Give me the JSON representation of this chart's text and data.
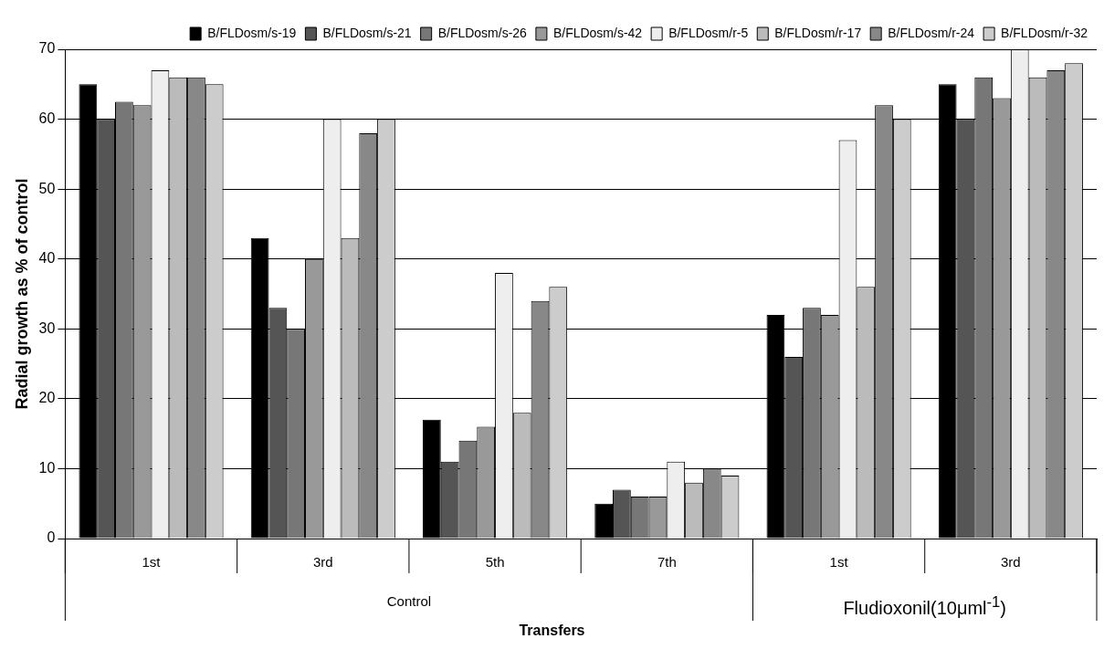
{
  "chart_data": {
    "type": "bar",
    "xlabel": "Transfers",
    "ylabel": "Radial growth as % of control",
    "categories": [
      "1st",
      "3rd",
      "5th",
      "7th",
      "1st",
      "3rd"
    ],
    "annotations": [
      "Control",
      "Fludioxonil(10μml$^{-1}$)"
    ],
    "ylim": [
      0,
      70
    ],
    "yticks": [
      0,
      10,
      20,
      30,
      40,
      50,
      60,
      70
    ],
    "grid": "y",
    "legend": "top right",
    "series": [
      {
        "name": "B/FLDosm/s-19",
        "color": "#000000",
        "values": [
          65,
          43,
          17,
          5,
          32,
          65
        ]
      },
      {
        "name": "B/FLDosm/s-21",
        "color": "#555555",
        "values": [
          60,
          33,
          11,
          7,
          26,
          60
        ]
      },
      {
        "name": "B/FLDosm/s-26",
        "color": "#777777",
        "values": [
          62.5,
          30,
          14,
          6,
          33,
          66
        ]
      },
      {
        "name": "B/FLDosm/s-42",
        "color": "#999999",
        "values": [
          62,
          40,
          16,
          6,
          32,
          63
        ]
      },
      {
        "name": "B/FLDosm/r-5",
        "color": "#eeeeee",
        "values": [
          67,
          60,
          38,
          11,
          57,
          70
        ]
      },
      {
        "name": "B/FLDosm/r-17",
        "color": "#bbbbbb",
        "values": [
          66,
          43,
          18,
          8,
          36,
          66
        ]
      },
      {
        "name": "B/FLDosm/r-24",
        "color": "#888888",
        "values": [
          66,
          58,
          34,
          10,
          62,
          67
        ]
      },
      {
        "name": "B/FLDosm/r-32",
        "color": "#cccccc",
        "values": [
          65,
          60,
          36,
          9,
          60,
          68
        ]
      }
    ]
  }
}
